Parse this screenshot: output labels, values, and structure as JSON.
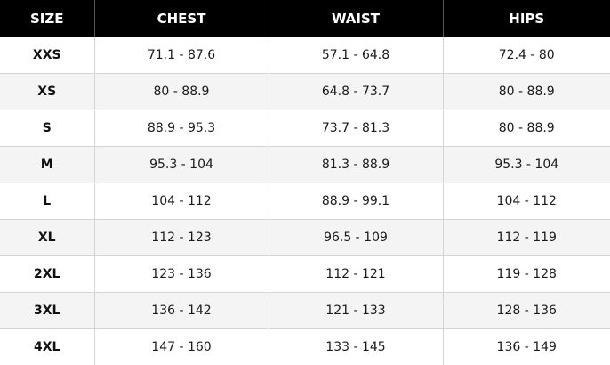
{
  "table": {
    "headers": [
      "SIZE",
      "CHEST",
      "WAIST",
      "HIPS"
    ],
    "rows": [
      [
        "XXS",
        "71.1 - 87.6",
        "57.1 - 64.8",
        "72.4 - 80"
      ],
      [
        "XS",
        "80 - 88.9",
        "64.8 - 73.7",
        "80 - 88.9"
      ],
      [
        "S",
        "88.9 - 95.3",
        "73.7 - 81.3",
        "80 - 88.9"
      ],
      [
        "M",
        "95.3 - 104",
        "81.3 - 88.9",
        "95.3 - 104"
      ],
      [
        "L",
        "104 - 112",
        "88.9 - 99.1",
        "104 - 112"
      ],
      [
        "XL",
        "112 - 123",
        "96.5 - 109",
        "112 - 119"
      ],
      [
        "2XL",
        "123 - 136",
        "112 - 121",
        "119 - 128"
      ],
      [
        "3XL",
        "136 - 142",
        "121 - 133",
        "128 - 136"
      ],
      [
        "4XL",
        "147 - 160",
        "133 - 145",
        "136 - 149"
      ]
    ]
  },
  "colors": {
    "header_bg": "#000000",
    "header_text": "#ffffff",
    "row_alt_bg": "#f4f4f4",
    "grid_line": "#d4d4d4"
  }
}
